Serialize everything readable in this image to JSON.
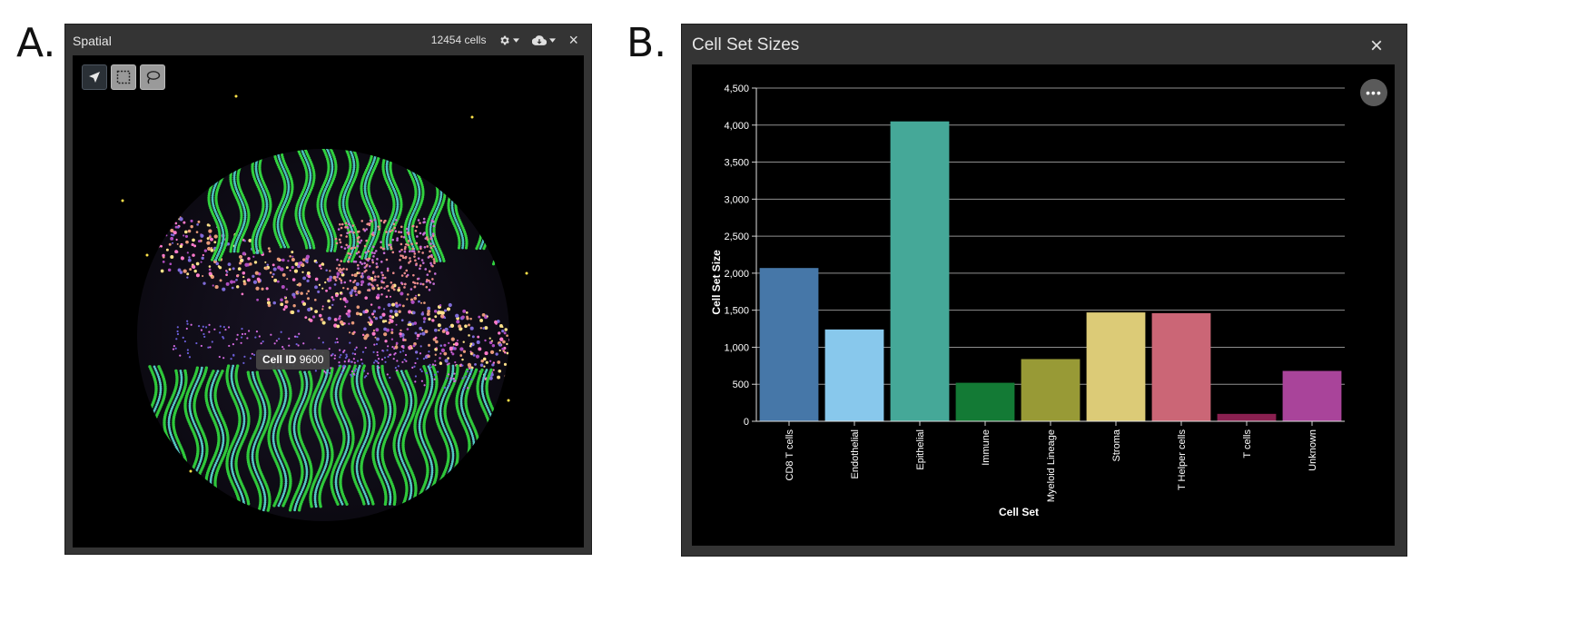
{
  "panels": {
    "a_label": "A.",
    "b_label": "B."
  },
  "spatial": {
    "title": "Spatial",
    "cell_count": "12454 cells",
    "settings_icon": "gear-icon",
    "download_icon": "cloud-download-icon",
    "close_label": "×",
    "tools": [
      {
        "name": "pan-tool",
        "icon": "navigation-arrow-icon",
        "active": true
      },
      {
        "name": "rectangle-select-tool",
        "icon": "dotted-rectangle-icon",
        "active": false
      },
      {
        "name": "lasso-select-tool",
        "icon": "lasso-icon",
        "active": false
      }
    ],
    "tooltip": {
      "key": "Cell ID",
      "value": "9600"
    }
  },
  "cell_sizes": {
    "title": "Cell Set Sizes",
    "close_label": "×",
    "more_label": "•••"
  },
  "chart_data": {
    "type": "bar",
    "categories": [
      "CD8 T cells",
      "Endothelial",
      "Epithelial",
      "Immune",
      "Myeloid Lineage",
      "Stroma",
      "T Helper cells",
      "T cells",
      "Unknown"
    ],
    "values": [
      2070,
      1240,
      4050,
      520,
      840,
      1470,
      1460,
      100,
      680
    ],
    "colors": [
      "#4677a8",
      "#88c8ec",
      "#45a898",
      "#137a35",
      "#989a36",
      "#dccb77",
      "#cb6676",
      "#8a2050",
      "#a9449a"
    ],
    "xlabel": "Cell Set",
    "ylabel": "Cell Set Size",
    "ylim": [
      0,
      4500
    ],
    "yticks": [
      0,
      500,
      1000,
      1500,
      2000,
      2500,
      3000,
      3500,
      4000,
      4500
    ],
    "ytick_labels": [
      "0",
      "500",
      "1,000",
      "1,500",
      "2,000",
      "2,500",
      "3,000",
      "3,500",
      "4,000",
      "4,500"
    ],
    "grid": true
  }
}
